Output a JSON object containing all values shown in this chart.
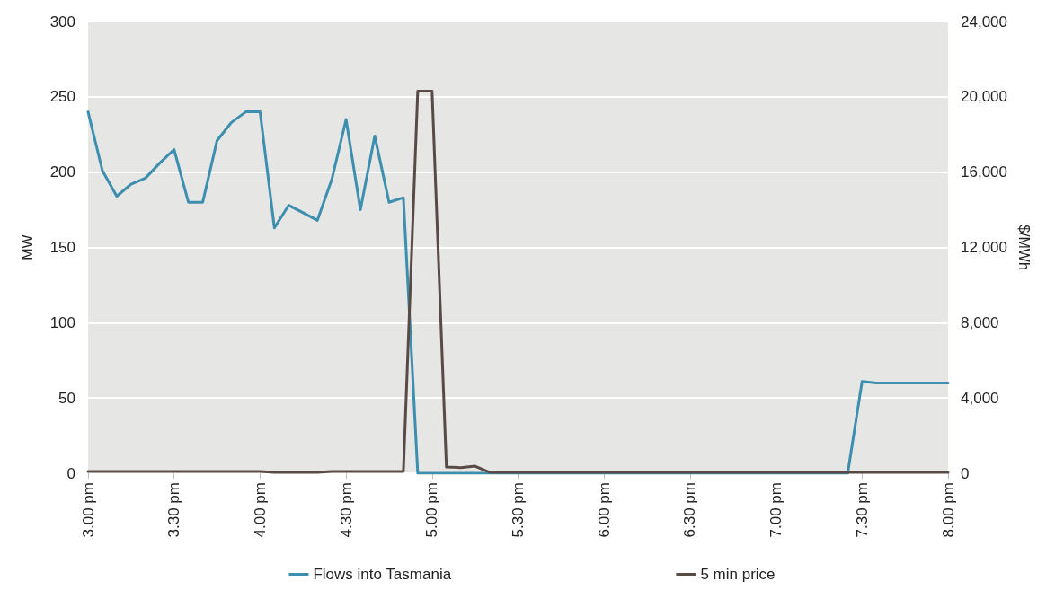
{
  "chart_data": {
    "type": "line",
    "categories": [
      "3.00 pm",
      null,
      null,
      null,
      null,
      null,
      "3.30 pm",
      null,
      null,
      null,
      null,
      null,
      "4.00 pm",
      null,
      null,
      null,
      null,
      null,
      "4.30 pm",
      null,
      null,
      null,
      null,
      null,
      "5.00 pm",
      null,
      null,
      null,
      null,
      null,
      "5.30 pm",
      null,
      null,
      null,
      null,
      null,
      "6.00 pm",
      null,
      null,
      null,
      null,
      null,
      "6.30 pm",
      null,
      null,
      null,
      null,
      null,
      "7.00 pm",
      null,
      null,
      null,
      null,
      null,
      "7.30 pm",
      null,
      null,
      null,
      null,
      null,
      "8.00 pm"
    ],
    "ylabel": "MW",
    "y2label": "$/MWh",
    "ylim": [
      0,
      300
    ],
    "yticks": [
      0,
      50,
      100,
      150,
      200,
      250,
      300
    ],
    "y2lim": [
      0,
      24000
    ],
    "y2ticks": [
      0,
      {
        "value": 4000,
        "label": "4,000"
      },
      {
        "value": 8000,
        "label": "8,000"
      },
      {
        "value": 12000,
        "label": "12,000"
      },
      {
        "value": 16000,
        "label": "16,000"
      },
      {
        "value": 20000,
        "label": "20,000"
      },
      {
        "value": 24000,
        "label": "24,000"
      }
    ],
    "grid": "y",
    "legend": "bottom",
    "marker": "none",
    "line_style": "solid",
    "series": [
      {
        "name": "Flows into Tasmania",
        "color": "#3d8fb0",
        "values": [
          240,
          201,
          184,
          192,
          196,
          206,
          215,
          180,
          180,
          221,
          233,
          240,
          240,
          163,
          178,
          173,
          168,
          195,
          235,
          175,
          224,
          180,
          183,
          0,
          0,
          0,
          0,
          0,
          0,
          0,
          0,
          0,
          0,
          0,
          0,
          0,
          0,
          0,
          0,
          0,
          0,
          0,
          0,
          0,
          0,
          0,
          0,
          0,
          0,
          0,
          0,
          0,
          0,
          0,
          61,
          60,
          60,
          60,
          60,
          60,
          60
        ]
      },
      {
        "name": "5 min price",
        "color": "#5a4a45",
        "axis": "y2",
        "values": [
          100,
          100,
          100,
          100,
          100,
          100,
          100,
          100,
          100,
          100,
          100,
          100,
          100,
          50,
          50,
          50,
          50,
          100,
          100,
          100,
          100,
          100,
          100,
          20300,
          20300,
          330,
          300,
          380,
          50,
          50,
          50,
          50,
          50,
          50,
          50,
          50,
          50,
          50,
          50,
          50,
          50,
          50,
          50,
          50,
          50,
          50,
          50,
          50,
          50,
          50,
          50,
          50,
          50,
          50,
          50,
          50,
          50,
          50,
          50,
          50,
          50
        ]
      }
    ]
  }
}
